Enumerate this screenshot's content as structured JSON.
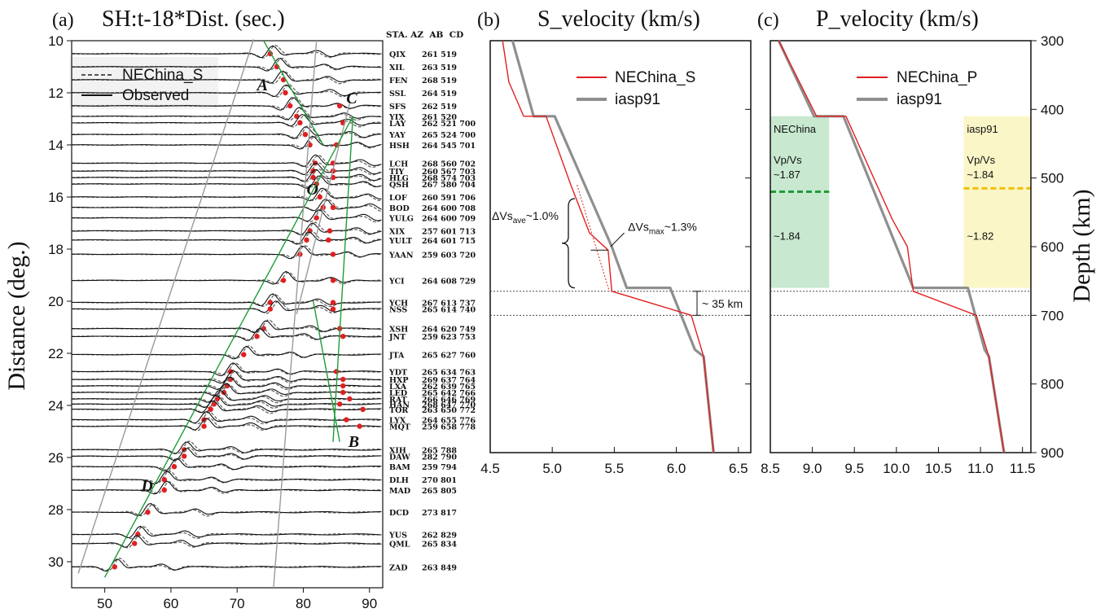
{
  "chart_data": [
    {
      "panel": "(a)",
      "type": "line",
      "title": "SH:t-18*Dist. (sec.)",
      "ylabel": "Distance (deg.)",
      "xlim": [
        45,
        92
      ],
      "ylim": [
        10,
        31
      ],
      "x_ticks": [
        "50",
        "60",
        "70",
        "80",
        "90"
      ],
      "y_ticks": [
        "10",
        "12",
        "14",
        "16",
        "18",
        "20",
        "22",
        "24",
        "26",
        "28",
        "30"
      ],
      "legend": {
        "position": "top-left",
        "entries": [
          "NEChina_S",
          "Observed"
        ]
      },
      "station_header": "STA. AZ  AB  CD",
      "stations": [
        {
          "name": "QIX",
          "dist": 10.5,
          "info": "261 519",
          "ap": 75,
          "pick": 75
        },
        {
          "name": "XIL",
          "dist": 11.0,
          "info": "263 519",
          "ap": 76,
          "pick": 76
        },
        {
          "name": "FEN",
          "dist": 11.5,
          "info": "268 519",
          "ap": 76.5,
          "pick": 77
        },
        {
          "name": "SSL",
          "dist": 12.0,
          "info": "264 519",
          "ap": 77,
          "pick": 77.3
        },
        {
          "name": "SFS",
          "dist": 12.5,
          "info": "262 519",
          "ap": 78,
          "pick": 78
        },
        {
          "name": "YIX",
          "dist": 12.9,
          "info": "261 520",
          "ap": 79,
          "pick": 79
        },
        {
          "name": "LAY",
          "dist": 13.15,
          "info": "262 521 700",
          "ap": 79.5,
          "pick": 79.5
        },
        {
          "name": "YAY",
          "dist": 13.6,
          "info": "265 524 700",
          "ap": 80,
          "pick": 80.3
        },
        {
          "name": "HSH",
          "dist": 14.0,
          "info": "264 545 701",
          "ap": 81,
          "pick": 81
        },
        {
          "name": "LCH",
          "dist": 14.7,
          "info": "268 560 702",
          "ap": 81.5,
          "pick": 81.8
        },
        {
          "name": "TIY",
          "dist": 15.0,
          "info": "260 567 703",
          "ap": 81.5,
          "pick": 81.5
        },
        {
          "name": "HLG",
          "dist": 15.25,
          "info": "268 574 703",
          "ap": 81.5,
          "pick": 81.5
        },
        {
          "name": "QSH",
          "dist": 15.5,
          "info": "267 580 704",
          "ap": 82,
          "pick": 82
        },
        {
          "name": "LOF",
          "dist": 16.0,
          "info": "260 591 706",
          "ap": 82.5,
          "pick": 82.5
        },
        {
          "name": "BOD",
          "dist": 16.4,
          "info": "264 600 708",
          "ap": 83,
          "pick": 83
        },
        {
          "name": "YULG",
          "dist": 16.8,
          "info": "264 600 709",
          "ap": 82,
          "pick": 82
        },
        {
          "name": "XIX",
          "dist": 17.3,
          "info": "257 601 713",
          "ap": 81,
          "pick": 81
        },
        {
          "name": "YULT",
          "dist": 17.65,
          "info": "264 601 715",
          "ap": 80.5,
          "pick": 80.5
        },
        {
          "name": "YAAN",
          "dist": 18.2,
          "info": "259 603 720",
          "ap": 79.5,
          "pick": 79.5
        },
        {
          "name": "YCI",
          "dist": 19.2,
          "info": "264 608 729",
          "ap": 77,
          "pick": 77
        },
        {
          "name": "YCH",
          "dist": 20.05,
          "info": "267 613 737",
          "ap": 75,
          "pick": 75
        },
        {
          "name": "NSS",
          "dist": 20.3,
          "info": "265 614 740",
          "ap": 75.5,
          "pick": 75
        },
        {
          "name": "XSH",
          "dist": 21.05,
          "info": "264 620 749",
          "ap": 74,
          "pick": 74
        },
        {
          "name": "JNT",
          "dist": 21.35,
          "info": "259 623 753",
          "ap": 73,
          "pick": 73
        },
        {
          "name": "JTA",
          "dist": 22.05,
          "info": "265 627 760",
          "ap": 71,
          "pick": 71
        },
        {
          "name": "YDT",
          "dist": 22.7,
          "info": "265 634 763",
          "ap": 69,
          "pick": 69
        },
        {
          "name": "HXP",
          "dist": 23.0,
          "info": "269 637 764",
          "ap": 69,
          "pick": 69
        },
        {
          "name": "LXA",
          "dist": 23.25,
          "info": "262 639 765",
          "ap": 68.5,
          "pick": 68.5
        },
        {
          "name": "LED",
          "dist": 23.5,
          "info": "265 642 766",
          "ap": 68,
          "pick": 68
        },
        {
          "name": "RAT",
          "dist": 23.75,
          "info": "266 646 769",
          "ap": 67,
          "pick": 67
        },
        {
          "name": "HAN",
          "dist": 23.95,
          "info": "268 647 770",
          "ap": 66.5,
          "pick": 66.5
        },
        {
          "name": "TOR",
          "dist": 24.15,
          "info": "263 650 772",
          "ap": 66,
          "pick": 66
        },
        {
          "name": "LYX",
          "dist": 24.55,
          "info": "264 655 776",
          "ap": 65,
          "pick": 65
        },
        {
          "name": "MQT",
          "dist": 24.8,
          "info": "259 658 778",
          "ap": 65,
          "pick": 65
        },
        {
          "name": "XIH",
          "dist": 25.7,
          "info": "265 788",
          "ap": 62,
          "pick": 62
        },
        {
          "name": "DAW",
          "dist": 25.95,
          "info": "282 790",
          "ap": 62,
          "pick": 62
        },
        {
          "name": "BAM",
          "dist": 26.35,
          "info": "259 794",
          "ap": 60.5,
          "pick": 60.5
        },
        {
          "name": "DLH",
          "dist": 26.85,
          "info": "270 801",
          "ap": 59,
          "pick": 59
        },
        {
          "name": "MAD",
          "dist": 27.25,
          "info": "265 805",
          "ap": 59,
          "pick": 59
        },
        {
          "name": "DCD",
          "dist": 28.1,
          "info": "273 817",
          "ap": 56.5,
          "pick": 56.5
        },
        {
          "name": "YUS",
          "dist": 28.95,
          "info": "262 829",
          "ap": 55,
          "pick": 55
        },
        {
          "name": "QML",
          "dist": 29.3,
          "info": "265 834",
          "ap": 54.5,
          "pick": 54.5
        },
        {
          "name": "ZAD",
          "dist": 30.2,
          "info": "263 849",
          "ap": 51.5,
          "pick": 51.5
        }
      ],
      "later_picks": [
        {
          "dist": 12.5,
          "time": 85.5
        },
        {
          "dist": 13.15,
          "time": 86
        },
        {
          "dist": 14.0,
          "time": 85
        },
        {
          "dist": 14.7,
          "time": 84.5
        },
        {
          "dist": 15.0,
          "time": 84.5
        },
        {
          "dist": 15.25,
          "time": 84.5
        },
        {
          "dist": 16.4,
          "time": 84.5
        },
        {
          "dist": 17.3,
          "time": 84
        },
        {
          "dist": 17.65,
          "time": 83.8
        },
        {
          "dist": 18.2,
          "time": 84.5
        },
        {
          "dist": 19.2,
          "time": 84.5
        },
        {
          "dist": 20.05,
          "time": 84.5
        },
        {
          "dist": 20.3,
          "time": 84.5
        },
        {
          "dist": 21.05,
          "time": 85.5
        },
        {
          "dist": 21.35,
          "time": 86
        },
        {
          "dist": 22.7,
          "time": 85
        },
        {
          "dist": 23.0,
          "time": 86
        },
        {
          "dist": 23.25,
          "time": 86
        },
        {
          "dist": 23.5,
          "time": 86
        },
        {
          "dist": 23.75,
          "time": 87
        },
        {
          "dist": 23.95,
          "time": 85.5
        },
        {
          "dist": 24.15,
          "time": 89
        },
        {
          "dist": 24.55,
          "time": 86.5
        },
        {
          "dist": 24.8,
          "time": 88.5
        }
      ],
      "branches": [
        {
          "label": "A",
          "label_at": [
            73,
            11.9
          ],
          "color": "#9a9a9a",
          "points": [
            [
              72.5,
              9.95
            ],
            [
              46,
              30.45
            ]
          ]
        },
        {
          "label": "C",
          "label_at": [
            86.5,
            12.4
          ],
          "color": "#1f9b3a",
          "points": [
            [
              87.5,
              12.9
            ],
            [
              84.5,
              25.4
            ]
          ]
        },
        {
          "label": "O",
          "label_at": [
            80.5,
            15.9
          ],
          "color": "#9a9a9a",
          "points": [
            [
              87,
              12.4
            ],
            [
              79,
              20.5
            ]
          ]
        },
        {
          "label": "B",
          "label_at": [
            86.8,
            25.6
          ],
          "color": "#1f9b3a",
          "points": [
            [
              81.5,
              20.0
            ],
            [
              85.5,
              25.4
            ]
          ]
        },
        {
          "label": "D",
          "label_at": [
            55.5,
            27.3
          ],
          "color": "#1f9b3a",
          "points": [
            [
              50,
              30.6
            ],
            [
              87.5,
              12.9
            ]
          ]
        },
        {
          "label": "",
          "label_at": null,
          "color": "#1f9b3a",
          "points": [
            [
              74,
              10.0
            ],
            [
              83,
              14.0
            ]
          ]
        },
        {
          "label": "",
          "label_at": null,
          "color": "#9a9a9a",
          "points": [
            [
              82,
              10.0
            ],
            [
              75.5,
              31.0
            ]
          ]
        }
      ]
    },
    {
      "panel": "(b)",
      "type": "line",
      "title": "S_velocity (km/s)",
      "xlim": [
        4.5,
        6.6
      ],
      "ylim": [
        300,
        900
      ],
      "x_ticks": [
        "4.5",
        "5.0",
        "5.5",
        "6.0",
        "6.5"
      ],
      "legend": {
        "position": "top-right",
        "entries": [
          "NEChina_S",
          "iasp91"
        ]
      },
      "series": [
        {
          "name": "NEChina_S",
          "color": "#e02020",
          "points": [
            [
              4.6,
              300
            ],
            [
              4.65,
              360
            ],
            [
              4.77,
              410
            ],
            [
              4.95,
              410
            ],
            [
              5.15,
              510
            ],
            [
              5.3,
              580
            ],
            [
              5.45,
              605
            ],
            [
              5.48,
              665
            ],
            [
              6.12,
              700
            ],
            [
              6.22,
              760
            ],
            [
              6.3,
              900
            ]
          ]
        },
        {
          "name": "iasp91",
          "color": "#8f8f8f",
          "points": [
            [
              4.68,
              300
            ],
            [
              4.85,
              410
            ],
            [
              5.02,
              410
            ],
            [
              5.48,
              600
            ],
            [
              5.6,
              660
            ],
            [
              5.95,
              660
            ],
            [
              6.15,
              750
            ],
            [
              6.22,
              760
            ],
            [
              6.3,
              900
            ]
          ]
        }
      ],
      "annotations": {
        "dvs_ave": {
          "prefix": "ΔVs",
          "sub": "ave",
          "suffix": "~1.0%"
        },
        "dvs_max": {
          "prefix": "ΔVs",
          "sub": "max",
          "suffix": "~1.3%"
        },
        "gap": "~ 35 km"
      },
      "dashed_depths": [
        665,
        700
      ]
    },
    {
      "panel": "(c)",
      "type": "line",
      "title": "P_velocity (km/s)",
      "ylabel": "Depth (km)",
      "xlim": [
        8.5,
        11.6
      ],
      "ylim": [
        300,
        900
      ],
      "x_ticks": [
        "8.5",
        "9.0",
        "9.5",
        "10.0",
        "10.5",
        "11.0",
        "11.5"
      ],
      "y_ticks": [
        "300",
        "400",
        "500",
        "600",
        "700",
        "800",
        "900"
      ],
      "legend": {
        "position": "top-right",
        "entries": [
          "NEChina_P",
          "iasp91"
        ]
      },
      "series": [
        {
          "name": "NEChina_P",
          "color": "#e02020",
          "points": [
            [
              8.6,
              300
            ],
            [
              9.05,
              410
            ],
            [
              9.4,
              410
            ],
            [
              9.95,
              560
            ],
            [
              10.13,
              600
            ],
            [
              10.2,
              665
            ],
            [
              10.95,
              700
            ],
            [
              11.1,
              760
            ],
            [
              11.28,
              900
            ]
          ]
        },
        {
          "name": "iasp91",
          "color": "#8f8f8f",
          "points": [
            [
              8.6,
              300
            ],
            [
              9.02,
              410
            ],
            [
              9.37,
              410
            ],
            [
              10.2,
              660
            ],
            [
              10.85,
              660
            ],
            [
              11.05,
              750
            ],
            [
              11.1,
              760
            ],
            [
              11.28,
              900
            ]
          ]
        }
      ],
      "boxes": [
        {
          "name": "NEChina",
          "color": "#c8e8d0",
          "line_color": "#1f9b3a",
          "line_depth": 520,
          "x_range": [
            8.5,
            9.2
          ],
          "depth_range": [
            410,
            660
          ],
          "text_top": "NEChina",
          "ratio_label": "Vp/Vs",
          "ratio_top": "~1.87",
          "ratio_bottom": "~1.84"
        },
        {
          "name": "iasp91",
          "color": "#fbf6c8",
          "line_color": "#f0c000",
          "line_depth": 515,
          "x_range": [
            10.8,
            11.6
          ],
          "depth_range": [
            410,
            660
          ],
          "text_top": "iasp91",
          "ratio_label": "Vp/Vs",
          "ratio_top": "~1.84",
          "ratio_bottom": "~1.82"
        }
      ],
      "dashed_depths": [
        665,
        700
      ]
    }
  ]
}
